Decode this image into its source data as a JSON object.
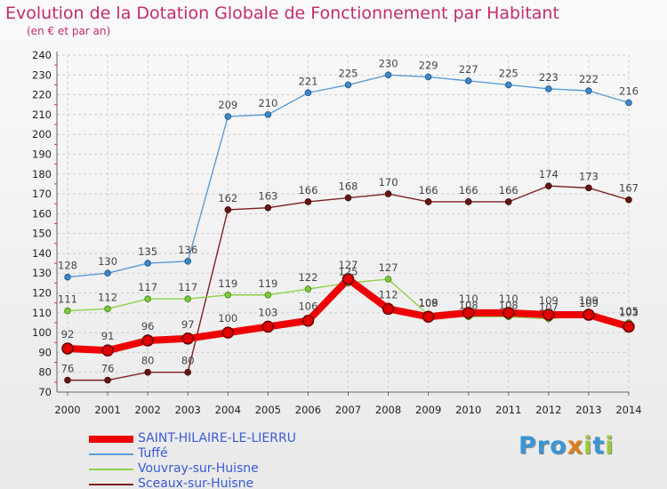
{
  "title": "Evolution de la Dotation Globale de Fonctionnement par Habitant",
  "subtitle": "(en € et par an)",
  "logo_text": "Proxiti",
  "colors": {
    "title": "#c42b70",
    "legend_text": "#3b5bd6",
    "grid": "#cccccc",
    "axis_marks": "#e03030"
  },
  "chart_data": {
    "type": "line",
    "title": "Evolution de la Dotation Globale de Fonctionnement par Habitant",
    "subtitle": "(en € et par an)",
    "xlabel": "",
    "ylabel": "",
    "ylim": [
      70,
      240
    ],
    "ytick_step": 10,
    "grid": true,
    "legend_position": "bottom-left",
    "x": [
      "2000",
      "2001",
      "2002",
      "2003",
      "2004",
      "2005",
      "2006",
      "2007",
      "2008",
      "2009",
      "2010",
      "2011",
      "2012",
      "2013",
      "2014"
    ],
    "series": [
      {
        "name": "Tuffé",
        "color": "#5b9bd5",
        "marker_fill": "#3c88c9",
        "marker_stroke": "#255f96",
        "values": [
          128,
          130,
          135,
          136,
          209,
          210,
          221,
          225,
          230,
          229,
          227,
          225,
          223,
          222,
          216
        ]
      },
      {
        "name": "Sceaux-sur-Huisne",
        "color": "#7d2020",
        "marker_fill": "#6b1515",
        "marker_stroke": "#3d0a0a",
        "values": [
          76,
          76,
          80,
          80,
          162,
          163,
          166,
          168,
          170,
          166,
          166,
          166,
          174,
          173,
          167
        ]
      },
      {
        "name": "Vouvray-sur-Huisne",
        "color": "#8ed24a",
        "marker_fill": "#7ccb3a",
        "marker_stroke": "#4f8d1c",
        "values": [
          111,
          112,
          117,
          117,
          119,
          119,
          122,
          125,
          127,
          109,
          108,
          108,
          107,
          109,
          105
        ]
      },
      {
        "name": "SAINT-HILAIRE-LE-LIERRU",
        "color": "#ee0000",
        "marker_fill": "#e00000",
        "marker_stroke": "#6b0000",
        "thick": true,
        "values": [
          92,
          91,
          96,
          97,
          100,
          103,
          106,
          127,
          112,
          108,
          110,
          110,
          109,
          109,
          103
        ]
      }
    ],
    "legend_order": [
      "SAINT-HILAIRE-LE-LIERRU",
      "Tuffé",
      "Vouvray-sur-Huisne",
      "Sceaux-sur-Huisne"
    ]
  }
}
